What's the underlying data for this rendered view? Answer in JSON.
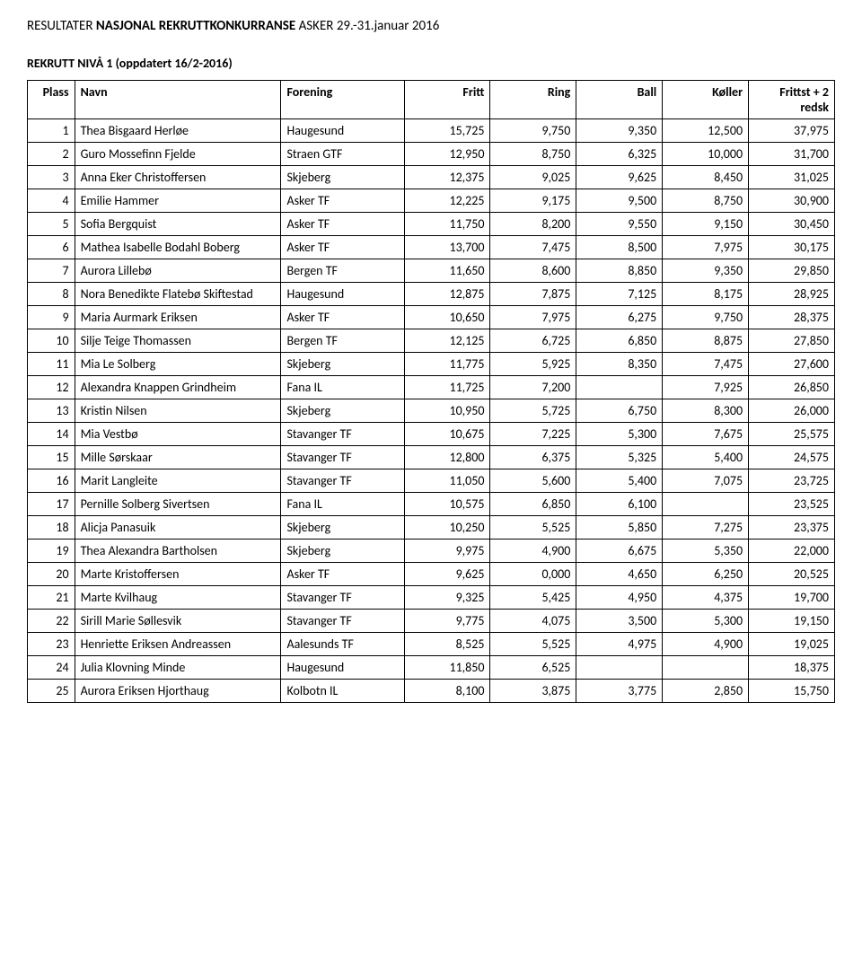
{
  "title_prefix": "RESULTATER ",
  "title_bold": "NASJONAL REKRUTTKONKURRANSE",
  "title_suffix": " ASKER 29.-31.januar 2016",
  "subtitle": "REKRUTT NIVÅ 1 (oppdatert 16/2-2016)",
  "headers": {
    "plass": "Plass",
    "navn": "Navn",
    "forening": "Forening",
    "fritt": "Fritt",
    "ring": "Ring",
    "ball": "Ball",
    "koller": "Køller",
    "sum": "Frittst + 2 redsk"
  },
  "rows": [
    {
      "p": "1",
      "n": "Thea Bisgaard Herløe",
      "f": "Haugesund",
      "c": [
        "15,725",
        "9,750",
        "9,350",
        "12,500",
        "37,975"
      ]
    },
    {
      "p": "2",
      "n": "Guro Mossefinn Fjelde",
      "f": "Straen GTF",
      "c": [
        "12,950",
        "8,750",
        "6,325",
        "10,000",
        "31,700"
      ]
    },
    {
      "p": "3",
      "n": "Anna Eker Christoffersen",
      "f": "Skjeberg",
      "c": [
        "12,375",
        "9,025",
        "9,625",
        "8,450",
        "31,025"
      ]
    },
    {
      "p": "4",
      "n": "Emilie Hammer",
      "f": "Asker TF",
      "c": [
        "12,225",
        "9,175",
        "9,500",
        "8,750",
        "30,900"
      ]
    },
    {
      "p": "5",
      "n": "Sofia Bergquist",
      "f": "Asker TF",
      "c": [
        "11,750",
        "8,200",
        "9,550",
        "9,150",
        "30,450"
      ]
    },
    {
      "p": "6",
      "n": "Mathea Isabelle Bodahl Boberg",
      "f": "Asker TF",
      "c": [
        "13,700",
        "7,475",
        "8,500",
        "7,975",
        "30,175"
      ]
    },
    {
      "p": "7",
      "n": "Aurora Lillebø",
      "f": "Bergen TF",
      "c": [
        "11,650",
        "8,600",
        "8,850",
        "9,350",
        "29,850"
      ]
    },
    {
      "p": "8",
      "n": "Nora Benedikte Flatebø Skiftestad",
      "f": "Haugesund",
      "c": [
        "12,875",
        "7,875",
        "7,125",
        "8,175",
        "28,925"
      ]
    },
    {
      "p": "9",
      "n": "Maria Aurmark Eriksen",
      "f": "Asker TF",
      "c": [
        "10,650",
        "7,975",
        "6,275",
        "9,750",
        "28,375"
      ]
    },
    {
      "p": "10",
      "n": "Silje Teige Thomassen",
      "f": "Bergen TF",
      "c": [
        "12,125",
        "6,725",
        "6,850",
        "8,875",
        "27,850"
      ]
    },
    {
      "p": "11",
      "n": "Mia Le Solberg",
      "f": "Skjeberg",
      "c": [
        "11,775",
        "5,925",
        "8,350",
        "7,475",
        "27,600"
      ]
    },
    {
      "p": "12",
      "n": "Alexandra Knappen Grindheim",
      "f": "Fana IL",
      "c": [
        "11,725",
        "7,200",
        "",
        "7,925",
        "26,850"
      ]
    },
    {
      "p": "13",
      "n": "Kristin Nilsen",
      "f": "Skjeberg",
      "c": [
        "10,950",
        "5,725",
        "6,750",
        "8,300",
        "26,000"
      ]
    },
    {
      "p": "14",
      "n": "Mia Vestbø",
      "f": "Stavanger TF",
      "c": [
        "10,675",
        "7,225",
        "5,300",
        "7,675",
        "25,575"
      ]
    },
    {
      "p": "15",
      "n": "Mille Sørskaar",
      "f": "Stavanger TF",
      "c": [
        "12,800",
        "6,375",
        "5,325",
        "5,400",
        "24,575"
      ]
    },
    {
      "p": "16",
      "n": "Marit Langleite",
      "f": "Stavanger TF",
      "c": [
        "11,050",
        "5,600",
        "5,400",
        "7,075",
        "23,725"
      ]
    },
    {
      "p": "17",
      "n": "Pernille Solberg Sivertsen",
      "f": "Fana IL",
      "c": [
        "10,575",
        "6,850",
        "6,100",
        "",
        "23,525"
      ]
    },
    {
      "p": "18",
      "n": "Alicja Panasuik",
      "f": "Skjeberg",
      "c": [
        "10,250",
        "5,525",
        "5,850",
        "7,275",
        "23,375"
      ]
    },
    {
      "p": "19",
      "n": "Thea Alexandra Bartholsen",
      "f": "Skjeberg",
      "c": [
        "9,975",
        "4,900",
        "6,675",
        "5,350",
        "22,000"
      ]
    },
    {
      "p": "20",
      "n": "Marte Kristoffersen",
      "f": "Asker TF",
      "c": [
        "9,625",
        "0,000",
        "4,650",
        "6,250",
        "20,525"
      ]
    },
    {
      "p": "21",
      "n": "Marte Kvilhaug",
      "f": "Stavanger TF",
      "c": [
        "9,325",
        "5,425",
        "4,950",
        "4,375",
        "19,700"
      ]
    },
    {
      "p": "22",
      "n": "Sirill Marie Søllesvik",
      "f": "Stavanger TF",
      "c": [
        "9,775",
        "4,075",
        "3,500",
        "5,300",
        "19,150"
      ]
    },
    {
      "p": "23",
      "n": "Henriette Eriksen Andreassen",
      "f": "Aalesunds TF",
      "c": [
        "8,525",
        "5,525",
        "4,975",
        "4,900",
        "19,025"
      ]
    },
    {
      "p": "24",
      "n": "Julia Klovning Minde",
      "f": "Haugesund",
      "c": [
        "11,850",
        "6,525",
        "",
        "",
        "18,375"
      ]
    },
    {
      "p": "25",
      "n": "Aurora Eriksen Hjorthaug",
      "f": "Kolbotn IL",
      "c": [
        "8,100",
        "3,875",
        "3,775",
        "2,850",
        "15,750"
      ]
    }
  ]
}
